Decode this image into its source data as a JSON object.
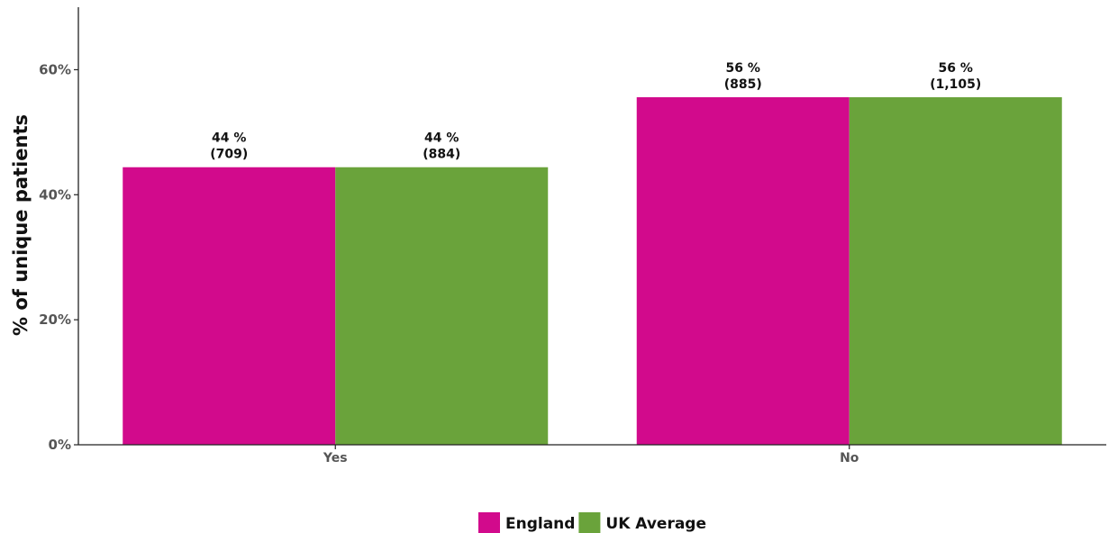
{
  "chart_data": {
    "type": "bar",
    "title": "",
    "xlabel": "",
    "ylabel": "% of unique patients",
    "ylim": [
      0,
      70
    ],
    "yticks": [
      0,
      20,
      40,
      60
    ],
    "ytick_labels": [
      "0%",
      "20%",
      "40%",
      "60%"
    ],
    "categories": [
      "Yes",
      "No"
    ],
    "series": [
      {
        "name": "England",
        "color": "#d20a8c",
        "values": [
          44.4,
          55.6
        ],
        "labels": [
          [
            "44 %",
            "(709)"
          ],
          [
            "56 %",
            "(885)"
          ]
        ]
      },
      {
        "name": "UK Average",
        "color": "#6aa33b",
        "values": [
          44.4,
          55.6
        ],
        "labels": [
          [
            "44 %",
            "(884)"
          ],
          [
            "56 %",
            "(1,105)"
          ]
        ]
      }
    ],
    "grid": false,
    "legend_position": "bottom"
  }
}
